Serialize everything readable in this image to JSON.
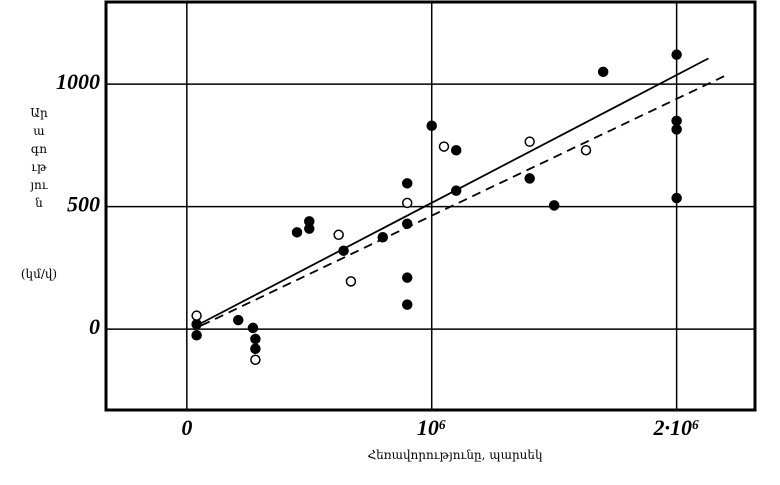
{
  "chart_data": {
    "type": "scatter",
    "y_label": "Արագություն",
    "y_unit": "(կմ/վ)",
    "x_label": "Հեռավորությունը, պարսեկ",
    "xlim": [
      -330000,
      2320000
    ],
    "ylim": [
      -330,
      1335
    ],
    "xticks": [
      0,
      {
        "value": 1000000,
        "label": "10⁶"
      },
      {
        "value": 2000000,
        "label": "2·10⁶"
      }
    ],
    "yticks": [
      0,
      500,
      1000
    ],
    "grid": true,
    "series": [
      {
        "type": "scatter",
        "color": "#000",
        "fill": "#000",
        "x": [
          40000,
          40000,
          210000,
          270000,
          280000,
          280000,
          450000,
          500000,
          500000,
          640000,
          800000,
          900000,
          900000,
          900000,
          900000,
          1000000,
          1100000,
          1100000,
          1400000,
          1500000,
          1700000,
          2000000,
          2000000,
          2000000,
          2000000
        ],
        "values": [
          20,
          -25,
          37,
          5,
          -40,
          -80,
          395,
          440,
          410,
          320,
          375,
          595,
          430,
          210,
          100,
          830,
          730,
          565,
          615,
          505,
          1050,
          1120,
          850,
          815,
          535
        ]
      },
      {
        "type": "scatter",
        "color": "#000",
        "fill": "#fff",
        "x": [
          40000,
          280000,
          620000,
          670000,
          900000,
          1050000,
          1400000,
          1630000
        ],
        "values": [
          55,
          -125,
          385,
          195,
          515,
          745,
          765,
          730
        ]
      },
      {
        "type": "line",
        "color": "#000",
        "dash": false,
        "x": [
          60000,
          2130000
        ],
        "values": [
          25,
          1105
        ]
      },
      {
        "type": "line",
        "color": "#000",
        "dash": true,
        "x": [
          60000,
          2200000
        ],
        "values": [
          15,
          1035
        ]
      }
    ]
  }
}
